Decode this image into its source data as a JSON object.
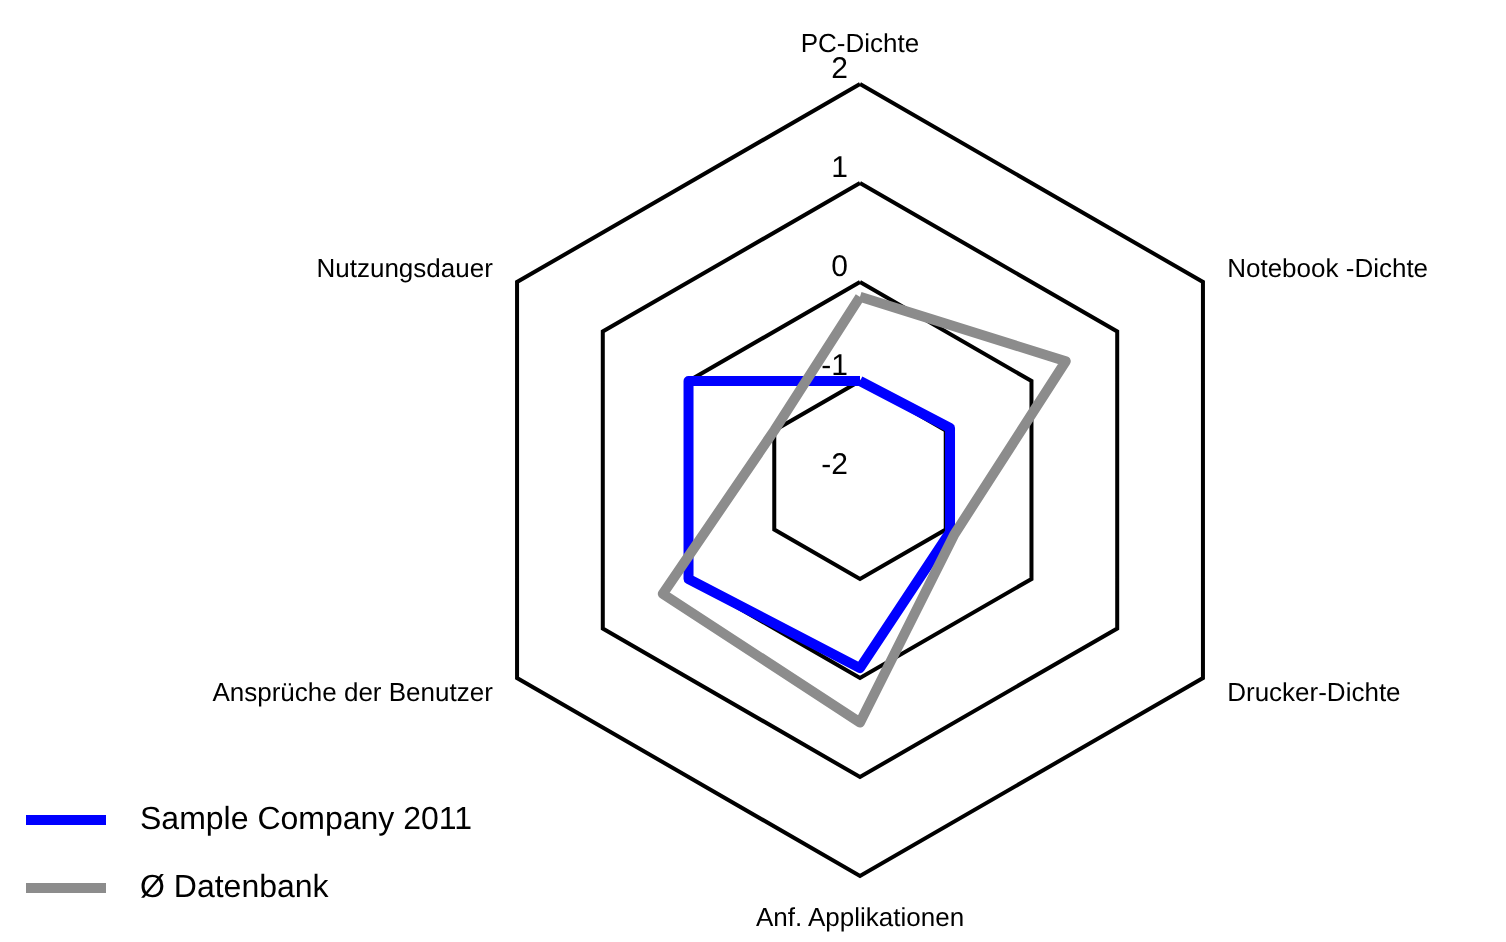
{
  "chart_data": {
    "type": "radar",
    "categories": [
      "PC-Dichte",
      "Notebook -Dichte",
      "Drucker-Dichte",
      "Anf. Applikationen",
      "Ansprüche der Benutzer",
      "Nutzungsdauer"
    ],
    "series": [
      {
        "name": "Sample Company 2011",
        "color": "#0000ff",
        "values": [
          -1,
          -0.95,
          -0.95,
          -0.1,
          0,
          0
        ]
      },
      {
        "name": "Ø Datenbank",
        "color": "#8c8c8c",
        "values": [
          -0.15,
          0.4,
          -0.9,
          0.45,
          0.3,
          -1
        ]
      }
    ],
    "ylim": [
      -2,
      2
    ],
    "yticks": [
      -2,
      -1,
      0,
      1,
      2
    ],
    "grid": true,
    "legend": "bottom left",
    "marker": "none",
    "line_style": "solid"
  }
}
